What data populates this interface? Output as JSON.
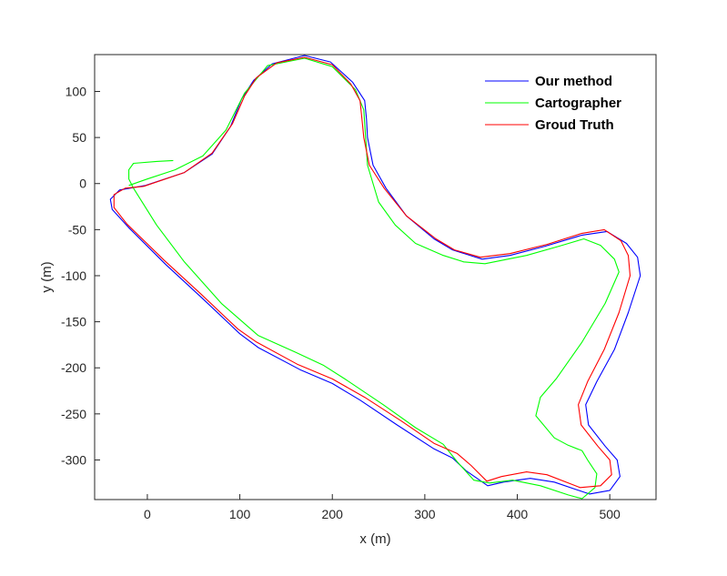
{
  "chart_data": {
    "type": "line",
    "title": "",
    "xlabel": "x (m)",
    "ylabel": "y (m)",
    "xlim": [
      -57,
      550
    ],
    "ylim": [
      -343,
      140
    ],
    "xticks": [
      0,
      100,
      200,
      300,
      400,
      500
    ],
    "yticks": [
      -300,
      -250,
      -200,
      -150,
      -100,
      -50,
      0,
      50,
      100
    ],
    "grid": false,
    "legend_position": "top-right",
    "series": [
      {
        "name": "Our method",
        "color": "#0000ff",
        "points": [
          [
            -2,
            -2
          ],
          [
            40,
            12
          ],
          [
            70,
            32
          ],
          [
            90,
            62
          ],
          [
            102,
            92
          ],
          [
            115,
            112
          ],
          [
            135,
            130
          ],
          [
            170,
            139
          ],
          [
            198,
            132
          ],
          [
            222,
            110
          ],
          [
            235,
            90
          ],
          [
            237,
            70
          ],
          [
            238,
            50
          ],
          [
            244,
            20
          ],
          [
            258,
            -5
          ],
          [
            280,
            -35
          ],
          [
            310,
            -60
          ],
          [
            330,
            -72
          ],
          [
            362,
            -82
          ],
          [
            392,
            -78
          ],
          [
            430,
            -68
          ],
          [
            470,
            -56
          ],
          [
            497,
            -52
          ],
          [
            518,
            -65
          ],
          [
            530,
            -80
          ],
          [
            533,
            -100
          ],
          [
            520,
            -140
          ],
          [
            505,
            -180
          ],
          [
            486,
            -215
          ],
          [
            474,
            -240
          ],
          [
            477,
            -262
          ],
          [
            495,
            -285
          ],
          [
            508,
            -300
          ],
          [
            511,
            -318
          ],
          [
            500,
            -333
          ],
          [
            478,
            -337
          ],
          [
            440,
            -324
          ],
          [
            414,
            -320
          ],
          [
            385,
            -324
          ],
          [
            368,
            -328
          ],
          [
            345,
            -312
          ],
          [
            330,
            -298
          ],
          [
            310,
            -288
          ],
          [
            270,
            -262
          ],
          [
            230,
            -235
          ],
          [
            200,
            -217
          ],
          [
            165,
            -202
          ],
          [
            120,
            -178
          ],
          [
            100,
            -163
          ],
          [
            60,
            -125
          ],
          [
            20,
            -88
          ],
          [
            -20,
            -48
          ],
          [
            -38,
            -28
          ],
          [
            -40,
            -17
          ],
          [
            -30,
            -7
          ],
          [
            -2,
            -2
          ]
        ]
      },
      {
        "name": "Cartographer",
        "color": "#00ff00",
        "points": [
          [
            28,
            25
          ],
          [
            10,
            24
          ],
          [
            -15,
            22
          ],
          [
            -20,
            15
          ],
          [
            -20,
            5
          ],
          [
            -15,
            -5
          ],
          [
            10,
            -45
          ],
          [
            40,
            -85
          ],
          [
            80,
            -130
          ],
          [
            120,
            -165
          ],
          [
            160,
            -183
          ],
          [
            190,
            -197
          ],
          [
            215,
            -213
          ],
          [
            255,
            -240
          ],
          [
            290,
            -265
          ],
          [
            320,
            -283
          ],
          [
            335,
            -302
          ],
          [
            353,
            -322
          ],
          [
            370,
            -325
          ],
          [
            395,
            -322
          ],
          [
            425,
            -328
          ],
          [
            455,
            -338
          ],
          [
            470,
            -342
          ],
          [
            484,
            -330
          ],
          [
            486,
            -315
          ],
          [
            476,
            -300
          ],
          [
            470,
            -290
          ],
          [
            455,
            -284
          ],
          [
            440,
            -276
          ],
          [
            420,
            -252
          ],
          [
            425,
            -232
          ],
          [
            442,
            -212
          ],
          [
            470,
            -172
          ],
          [
            495,
            -130
          ],
          [
            510,
            -96
          ],
          [
            505,
            -82
          ],
          [
            490,
            -67
          ],
          [
            472,
            -60
          ],
          [
            445,
            -68
          ],
          [
            410,
            -78
          ],
          [
            365,
            -87
          ],
          [
            342,
            -85
          ],
          [
            320,
            -78
          ],
          [
            290,
            -65
          ],
          [
            268,
            -45
          ],
          [
            250,
            -20
          ],
          [
            238,
            20
          ],
          [
            234,
            80
          ],
          [
            225,
            102
          ],
          [
            200,
            127
          ],
          [
            170,
            136
          ],
          [
            130,
            128
          ],
          [
            105,
            98
          ],
          [
            85,
            58
          ],
          [
            60,
            30
          ],
          [
            30,
            15
          ],
          [
            0,
            5
          ],
          [
            -20,
            -2
          ]
        ]
      },
      {
        "name": "Groud Truth",
        "color": "#ff0000",
        "points": [
          [
            -4,
            -3
          ],
          [
            40,
            12
          ],
          [
            70,
            33
          ],
          [
            92,
            65
          ],
          [
            105,
            95
          ],
          [
            118,
            115
          ],
          [
            140,
            131
          ],
          [
            170,
            137
          ],
          [
            200,
            129
          ],
          [
            220,
            108
          ],
          [
            230,
            90
          ],
          [
            232,
            70
          ],
          [
            234,
            50
          ],
          [
            240,
            20
          ],
          [
            256,
            -5
          ],
          [
            280,
            -35
          ],
          [
            312,
            -60
          ],
          [
            332,
            -72
          ],
          [
            360,
            -80
          ],
          [
            392,
            -76
          ],
          [
            432,
            -66
          ],
          [
            470,
            -54
          ],
          [
            494,
            -50
          ],
          [
            512,
            -62
          ],
          [
            520,
            -78
          ],
          [
            522,
            -100
          ],
          [
            510,
            -140
          ],
          [
            494,
            -180
          ],
          [
            476,
            -215
          ],
          [
            466,
            -240
          ],
          [
            469,
            -262
          ],
          [
            487,
            -285
          ],
          [
            500,
            -300
          ],
          [
            502,
            -316
          ],
          [
            490,
            -328
          ],
          [
            468,
            -330
          ],
          [
            432,
            -316
          ],
          [
            410,
            -313
          ],
          [
            383,
            -318
          ],
          [
            367,
            -323
          ],
          [
            350,
            -306
          ],
          [
            335,
            -293
          ],
          [
            310,
            -282
          ],
          [
            275,
            -258
          ],
          [
            235,
            -232
          ],
          [
            200,
            -212
          ],
          [
            162,
            -196
          ],
          [
            118,
            -172
          ],
          [
            98,
            -158
          ],
          [
            58,
            -120
          ],
          [
            18,
            -83
          ],
          [
            -22,
            -44
          ],
          [
            -36,
            -26
          ],
          [
            -36,
            -12
          ],
          [
            -24,
            -5
          ],
          [
            -4,
            -3
          ]
        ]
      }
    ]
  }
}
